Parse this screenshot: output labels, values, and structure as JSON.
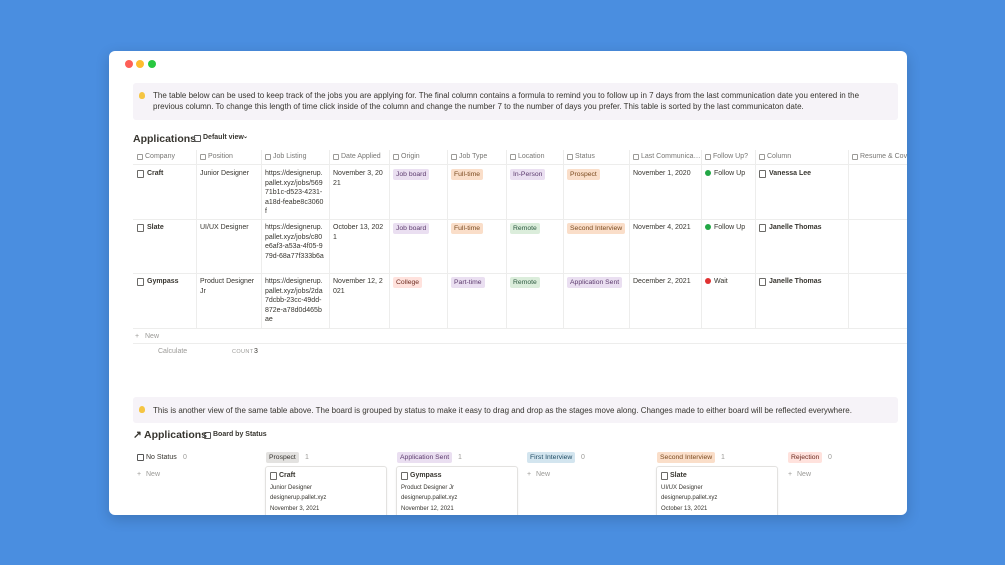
{
  "callouts": [
    "The table below can be used to keep track of the jobs you are applying for. The final column contains a formula to remind you to follow up in 7 days from the last communication date you entered in the previous column. To change this length of time click inside of the column and change the number 7 to the number of days you prefer. This table is sorted by the last communicaton date.",
    "This is another view of the same table above. The board is grouped by status to make it easy to drag and drop as the stages move along. Changes made to either board will be reflected everywhere."
  ],
  "table": {
    "title": "Applications",
    "view": "Default view",
    "columns": [
      "Company",
      "Position",
      "Job Listing",
      "Date Applied",
      "Origin",
      "Job Type",
      "Location",
      "Status",
      "Last Communica…",
      "Follow Up?",
      "Column",
      "Resume & Cove"
    ],
    "rows": [
      [
        "Craft",
        "Junior Designer",
        "https://designerup.pallet.xyz/jobs/56971b1c-d523-4231-a18d-feabe8c3060f",
        "November 3, 2021",
        {
          "text": "Job board",
          "color": "purple"
        },
        {
          "text": "Full-time",
          "color": "orange"
        },
        {
          "text": "In-Person",
          "color": "purple"
        },
        {
          "text": "Prospect",
          "color": "orange"
        },
        "November 1, 2020",
        {
          "text": "Follow Up",
          "color": "#22a745"
        },
        "Vanessa Lee"
      ],
      [
        "Slate",
        "UI/UX Designer",
        "https://designerup.pallet.xyz/jobs/c80e6af3-a53a-4f05-979d-68a77f333b6a",
        "October 13, 2021",
        {
          "text": "Job board",
          "color": "purple"
        },
        {
          "text": "Full-time",
          "color": "orange"
        },
        {
          "text": "Remote",
          "color": "green"
        },
        {
          "text": "Second Interview",
          "color": "orange"
        },
        "November 4, 2021",
        {
          "text": "Follow Up",
          "color": "#22a745"
        },
        "Janelle Thomas"
      ],
      [
        "Gympass",
        "Product Designer Jr",
        "https://designerup.pallet.xyz/jobs/2da7dcbb-23cc-49dd-872e-a78d0d465bae",
        "November 12, 2021",
        {
          "text": "College",
          "color": "red"
        },
        {
          "text": "Part-time",
          "color": "purple"
        },
        {
          "text": "Remote",
          "color": "green"
        },
        {
          "text": "Application Sent",
          "color": "purple"
        },
        "December 2, 2021",
        {
          "text": "Wait",
          "color": "#e03131"
        },
        "Janelle Thomas"
      ]
    ],
    "new": "New",
    "calculate": "Calculate",
    "count_label": "COUNT",
    "count": 3
  },
  "board": {
    "title": "Applications",
    "view": "Board by Status",
    "new": "New",
    "groups": [
      {
        "name": "No Status",
        "count": 0,
        "cards": []
      },
      {
        "name": "Prospect",
        "color": "gray",
        "count": 1,
        "cards": [
          {
            "title": "Craft",
            "position": "Junior Designer",
            "listing": "designerup.pallet.xyz",
            "date": "November 3, 2021"
          }
        ]
      },
      {
        "name": "Application Sent",
        "color": "purple",
        "count": 1,
        "cards": [
          {
            "title": "Gympass",
            "position": "Product Designer Jr",
            "listing": "designerup.pallet.xyz",
            "date": "November 12, 2021"
          }
        ]
      },
      {
        "name": "First Interview",
        "color": "blue",
        "count": 0,
        "cards": []
      },
      {
        "name": "Second Interview",
        "color": "orange",
        "count": 1,
        "cards": [
          {
            "title": "Slate",
            "position": "UI/UX Designer",
            "listing": "designerup.pallet.xyz",
            "date": "October 13, 2021"
          }
        ]
      },
      {
        "name": "Rejection",
        "color": "red",
        "count": 0,
        "cards": []
      }
    ]
  }
}
